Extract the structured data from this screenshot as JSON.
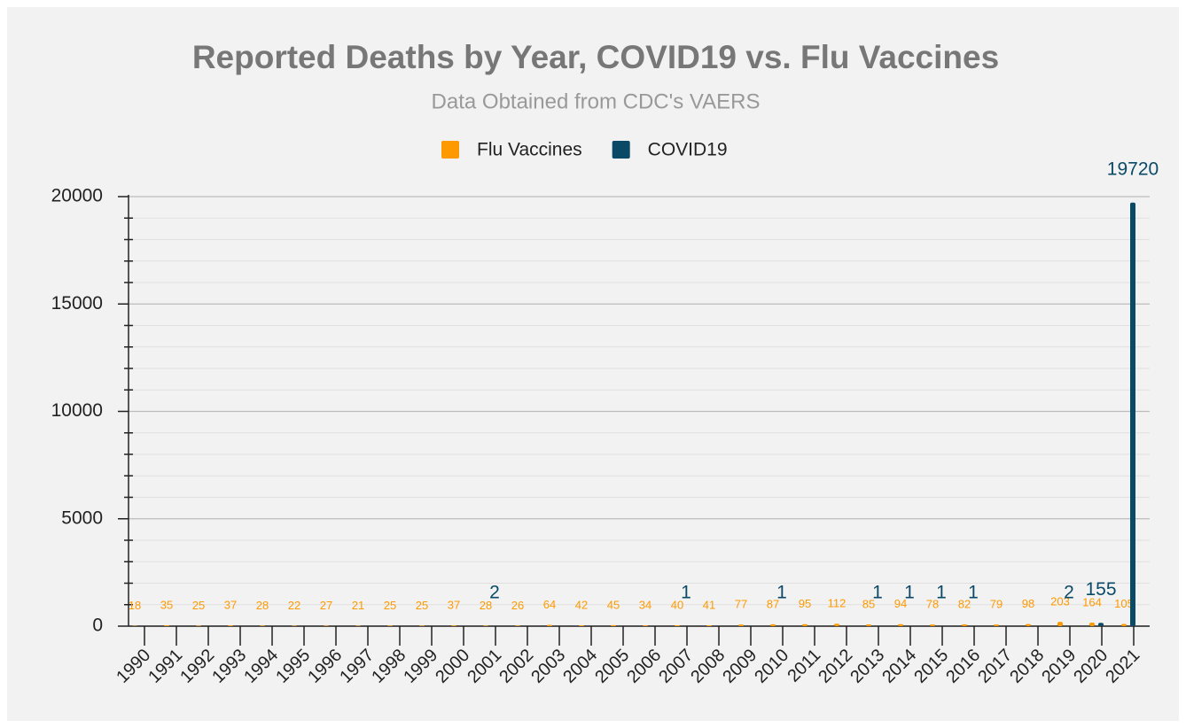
{
  "chart_data": {
    "type": "bar",
    "title": "Reported Deaths by Year, COVID19 vs. Flu Vaccines",
    "subtitle": "Data Obtained from CDC's VAERS",
    "categories": [
      "1990",
      "1991",
      "1992",
      "1993",
      "1994",
      "1995",
      "1996",
      "1997",
      "1998",
      "1999",
      "2000",
      "2001",
      "2002",
      "2003",
      "2004",
      "2005",
      "2006",
      "2007",
      "2008",
      "2009",
      "2010",
      "2011",
      "2012",
      "2013",
      "2014",
      "2015",
      "2016",
      "2017",
      "2018",
      "2019",
      "2020",
      "2021"
    ],
    "series": [
      {
        "name": "Flu Vaccines",
        "color": "#ff9900",
        "values": [
          18,
          35,
          25,
          37,
          28,
          22,
          27,
          21,
          25,
          25,
          37,
          28,
          26,
          64,
          42,
          45,
          34,
          40,
          41,
          77,
          87,
          95,
          112,
          85,
          94,
          78,
          82,
          79,
          98,
          203,
          164,
          105
        ]
      },
      {
        "name": "COVID19",
        "color": "#0b4a66",
        "values": [
          null,
          null,
          null,
          null,
          null,
          null,
          null,
          null,
          null,
          null,
          null,
          2,
          null,
          null,
          null,
          null,
          null,
          1,
          null,
          null,
          1,
          null,
          null,
          1,
          1,
          1,
          1,
          null,
          null,
          2,
          155,
          19720
        ]
      }
    ],
    "ylim": [
      0,
      20000
    ],
    "yticks": [
      0,
      5000,
      10000,
      15000,
      20000
    ],
    "minor_yticks": [
      1000,
      2000,
      3000,
      4000,
      6000,
      7000,
      8000,
      9000,
      11000,
      12000,
      13000,
      14000,
      16000,
      17000,
      18000,
      19000
    ],
    "grid": true,
    "legend": "top"
  }
}
